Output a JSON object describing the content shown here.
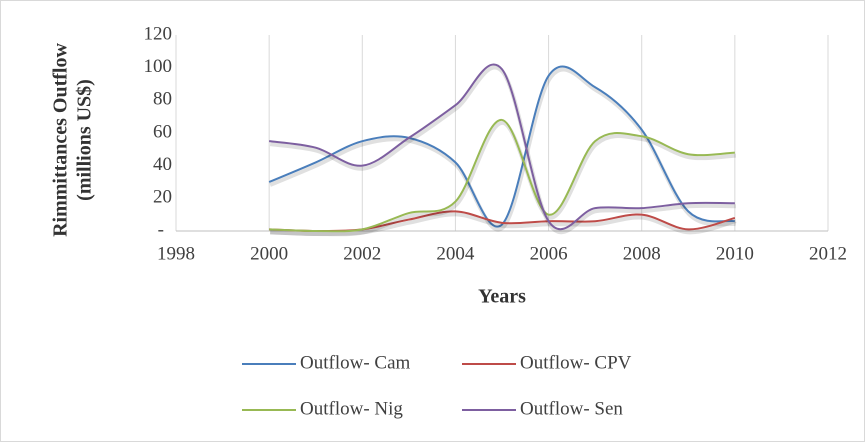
{
  "chart_data": {
    "type": "line",
    "xlabel": "Years",
    "ylabel": [
      "Rimmittances Outflow",
      "(millions US$)"
    ],
    "x": [
      2000,
      2001,
      2002,
      2003,
      2004,
      2005,
      2006,
      2007,
      2008,
      2009,
      2010
    ],
    "xlim": [
      1998,
      2012
    ],
    "xticks": [
      1998,
      2000,
      2002,
      2004,
      2006,
      2008,
      2010,
      2012
    ],
    "ylim": [
      0,
      120
    ],
    "yticks": [
      {
        "value": 0,
        "label": "-"
      },
      20,
      40,
      60,
      80,
      100,
      120
    ],
    "grid": "x",
    "smooth": true,
    "series": [
      {
        "name": "Outflow- Cam",
        "color": "#4a7ebb",
        "values": [
          30,
          42,
          55,
          57,
          42,
          4,
          95,
          88,
          62,
          12,
          6
        ]
      },
      {
        "name": "Outflow- CPV",
        "color": "#be4b48",
        "values": [
          1,
          0,
          1,
          7,
          12,
          5,
          6,
          6,
          10,
          1,
          8
        ]
      },
      {
        "name": "Outflow- Nig",
        "color": "#98b954",
        "values": [
          1,
          0,
          1,
          11,
          18,
          68,
          10,
          55,
          58,
          47,
          48
        ]
      },
      {
        "name": "Outflow- Sen",
        "color": "#7d5fa0",
        "values": [
          55,
          51,
          40,
          57,
          77,
          99,
          6,
          14,
          14,
          17,
          17
        ]
      }
    ]
  }
}
